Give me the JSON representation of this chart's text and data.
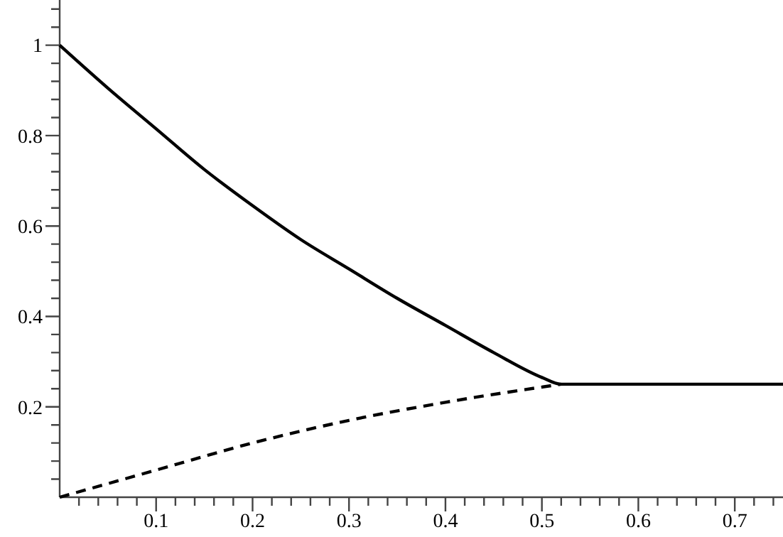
{
  "chart_data": {
    "type": "line",
    "xlim": [
      0,
      0.75
    ],
    "ylim": [
      0,
      1.1
    ],
    "xticks": [
      {
        "value": 0.02,
        "label": null
      },
      {
        "value": 0.04,
        "label": null
      },
      {
        "value": 0.06,
        "label": null
      },
      {
        "value": 0.08,
        "label": null
      },
      0.1,
      {
        "value": 0.12,
        "label": null
      },
      {
        "value": 0.14,
        "label": null
      },
      {
        "value": 0.16,
        "label": null
      },
      {
        "value": 0.18,
        "label": null
      },
      0.2,
      {
        "value": 0.22,
        "label": null
      },
      {
        "value": 0.24,
        "label": null
      },
      {
        "value": 0.26,
        "label": null
      },
      {
        "value": 0.28,
        "label": null
      },
      0.3,
      {
        "value": 0.32,
        "label": null
      },
      {
        "value": 0.34,
        "label": null
      },
      {
        "value": 0.36,
        "label": null
      },
      {
        "value": 0.38,
        "label": null
      },
      0.4,
      {
        "value": 0.42,
        "label": null
      },
      {
        "value": 0.44,
        "label": null
      },
      {
        "value": 0.46,
        "label": null
      },
      {
        "value": 0.48,
        "label": null
      },
      0.5,
      {
        "value": 0.52,
        "label": null
      },
      {
        "value": 0.54,
        "label": null
      },
      {
        "value": 0.56,
        "label": null
      },
      {
        "value": 0.58,
        "label": null
      },
      0.6,
      {
        "value": 0.62,
        "label": null
      },
      {
        "value": 0.64,
        "label": null
      },
      {
        "value": 0.66,
        "label": null
      },
      {
        "value": 0.68,
        "label": null
      },
      0.7,
      {
        "value": 0.72,
        "label": null
      },
      {
        "value": 0.74,
        "label": null
      }
    ],
    "yticks": [
      {
        "value": 0.04,
        "label": null
      },
      {
        "value": 0.08,
        "label": null
      },
      {
        "value": 0.12,
        "label": null
      },
      {
        "value": 0.16,
        "label": null
      },
      0.2,
      {
        "value": 0.24,
        "label": null
      },
      {
        "value": 0.28,
        "label": null
      },
      {
        "value": 0.32,
        "label": null
      },
      {
        "value": 0.36,
        "label": null
      },
      0.4,
      {
        "value": 0.44,
        "label": null
      },
      {
        "value": 0.48,
        "label": null
      },
      {
        "value": 0.52,
        "label": null
      },
      {
        "value": 0.56,
        "label": null
      },
      0.6,
      {
        "value": 0.64,
        "label": null
      },
      {
        "value": 0.68,
        "label": null
      },
      {
        "value": 0.72,
        "label": null
      },
      {
        "value": 0.76,
        "label": null
      },
      0.8,
      {
        "value": 0.84,
        "label": null
      },
      {
        "value": 0.88,
        "label": null
      },
      {
        "value": 0.92,
        "label": null
      },
      {
        "value": 0.96,
        "label": null
      },
      1,
      {
        "value": 1.04,
        "label": null
      },
      {
        "value": 1.08,
        "label": null
      }
    ],
    "grid": false,
    "marker": "none",
    "series": [
      {
        "color": "#000000",
        "line_style": "solid",
        "x": [
          0,
          0.05,
          0.1,
          0.15,
          0.2,
          0.25,
          0.3,
          0.35,
          0.4,
          0.45,
          0.5,
          0.52,
          0.75
        ],
        "values": [
          1,
          0.905,
          0.815,
          0.725,
          0.645,
          0.57,
          0.505,
          0.44,
          0.38,
          0.32,
          0.265,
          0.25,
          0.25
        ]
      },
      {
        "color": "#000000",
        "line_style": "dashed",
        "x": [
          0,
          0.1,
          0.2,
          0.3,
          0.4,
          0.52
        ],
        "values": [
          0,
          0.06,
          0.12,
          0.17,
          0.21,
          0.25
        ]
      }
    ]
  }
}
